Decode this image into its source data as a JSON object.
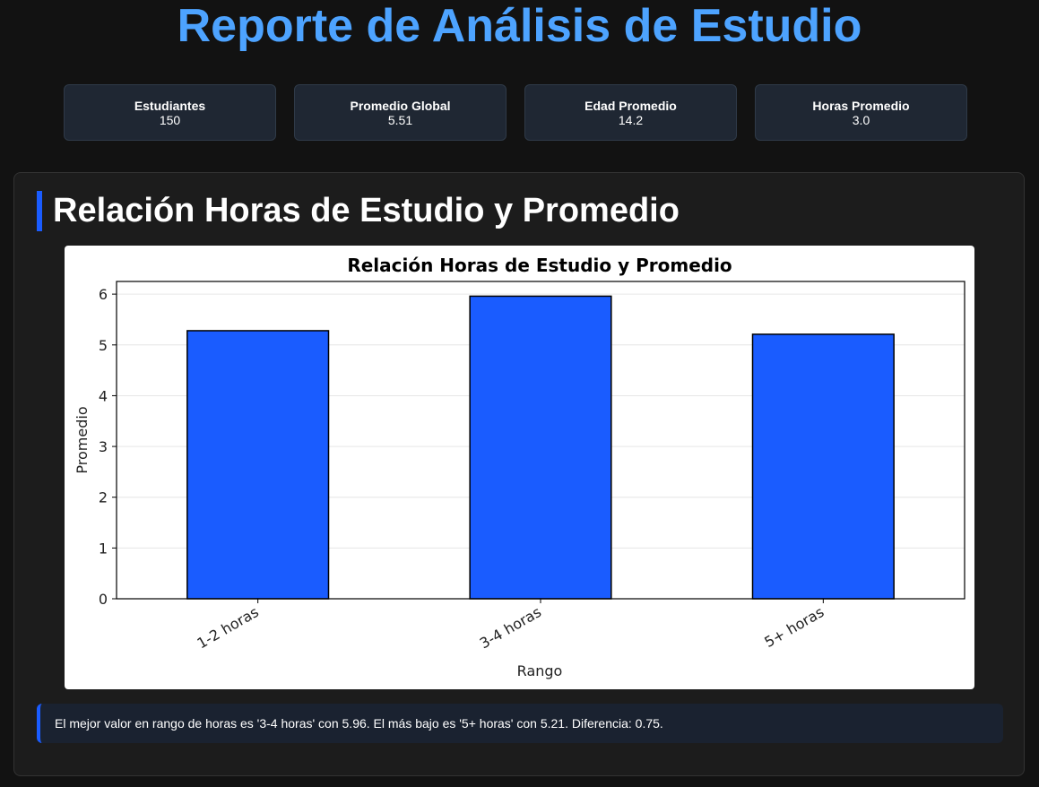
{
  "header": {
    "title": "Reporte de Análisis de Estudio"
  },
  "stats": [
    {
      "label": "Estudiantes",
      "value": "150"
    },
    {
      "label": "Promedio Global",
      "value": "5.51"
    },
    {
      "label": "Edad Promedio",
      "value": "14.2"
    },
    {
      "label": "Horas Promedio",
      "value": "3.0"
    }
  ],
  "section": {
    "title": "Relación Horas de Estudio y Promedio"
  },
  "chart_data": {
    "type": "bar",
    "title": "Relación Horas de Estudio y Promedio",
    "categories": [
      "1-2 horas",
      "3-4 horas",
      "5+ horas"
    ],
    "values": [
      5.28,
      5.96,
      5.21
    ],
    "xlabel": "Rango",
    "ylabel": "Promedio",
    "ylim": [
      0,
      6.25
    ],
    "yticks": [
      "0",
      "1",
      "2",
      "3",
      "4",
      "5",
      "6"
    ],
    "grid": "y-axis, light",
    "bar_color": "#1a5cff",
    "bar_edge_color": "#000000"
  },
  "insight": {
    "text": "El mejor valor en rango de horas es '3-4 horas' con 5.96. El más bajo es '5+ horas' con 5.21. Diferencia: 0.75."
  },
  "colors": {
    "background": "#121212",
    "title_accent": "#4da3ff",
    "accent": "#1a5cff",
    "card_bg": "#1f2733"
  }
}
